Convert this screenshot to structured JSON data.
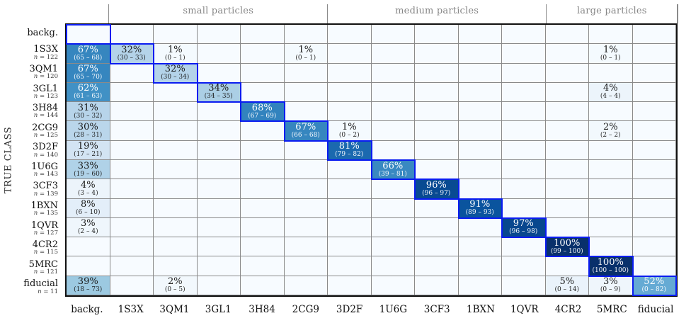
{
  "chart_data": {
    "type": "heatmap",
    "ylabel": "TRUE CLASS",
    "legend_position": "none",
    "grid": true,
    "colors": {
      "empty_cell": "#f7fbff",
      "diagonal_border": "#0a1cf0",
      "grid_line": "#8a8a8a",
      "frame": "#101010",
      "group_header_text": "#878787",
      "colormap": "Blues"
    },
    "group_headers": [
      {
        "label": "small particles",
        "start": 1,
        "span": 5
      },
      {
        "label": "medium particles",
        "start": 6,
        "span": 5
      },
      {
        "label": "large particles",
        "start": 11,
        "span": 3
      }
    ],
    "columns": [
      "backg.",
      "1S3X",
      "3QM1",
      "3GL1",
      "3H84",
      "2CG9",
      "3D2F",
      "1U6G",
      "3CF3",
      "1BXN",
      "1QVR",
      "4CR2",
      "5MRC",
      "fiducial"
    ],
    "rows": [
      {
        "label": "backg.",
        "n": null,
        "n_label": "",
        "cells": []
      },
      {
        "label": "1S3X",
        "n": 122,
        "n_label": "n = 122",
        "cells": [
          {
            "c": 0,
            "pct": "67%",
            "range": "(65 – 68)",
            "value": 67,
            "ci": [
              65,
              68
            ],
            "bg": "#3686bf"
          },
          {
            "c": 1,
            "pct": "32%",
            "range": "(30 – 33)",
            "value": 32,
            "ci": [
              30,
              33
            ],
            "bg": "#b4d3e9"
          },
          {
            "c": 2,
            "pct": "1%",
            "range": "(0 – 1)",
            "value": 1,
            "ci": [
              0,
              1
            ],
            "bg": "#f4fafe"
          },
          {
            "c": 5,
            "pct": "1%",
            "range": "(0 – 1)",
            "value": 1,
            "ci": [
              0,
              1
            ],
            "bg": "#f4fafe"
          },
          {
            "c": 12,
            "pct": "1%",
            "range": "(0 – 1)",
            "value": 1,
            "ci": [
              0,
              1
            ],
            "bg": "#f4fafe"
          }
        ]
      },
      {
        "label": "3QM1",
        "n": 120,
        "n_label": "n = 120",
        "cells": [
          {
            "c": 0,
            "pct": "67%",
            "range": "(65 – 70)",
            "value": 67,
            "ci": [
              65,
              70
            ],
            "bg": "#3686bf"
          },
          {
            "c": 2,
            "pct": "32%",
            "range": "(30 – 34)",
            "value": 32,
            "ci": [
              30,
              34
            ],
            "bg": "#b4d3e9"
          }
        ]
      },
      {
        "label": "3GL1",
        "n": 123,
        "n_label": "n = 123",
        "cells": [
          {
            "c": 0,
            "pct": "62%",
            "range": "(61 – 63)",
            "value": 62,
            "ci": [
              61,
              63
            ],
            "bg": "#4191c5"
          },
          {
            "c": 3,
            "pct": "34%",
            "range": "(34 – 35)",
            "value": 34,
            "ci": [
              34,
              35
            ],
            "bg": "#abcfe5"
          },
          {
            "c": 12,
            "pct": "4%",
            "range": "(4 – 4)",
            "value": 4,
            "ci": [
              4,
              4
            ],
            "bg": "#ecf4fb"
          }
        ]
      },
      {
        "label": "3H84",
        "n": 144,
        "n_label": "n = 144",
        "cells": [
          {
            "c": 0,
            "pct": "31%",
            "range": "(30 – 32)",
            "value": 31,
            "ci": [
              30,
              32
            ],
            "bg": "#b7d4ea"
          },
          {
            "c": 4,
            "pct": "68%",
            "range": "(67 – 69)",
            "value": 68,
            "ci": [
              67,
              69
            ],
            "bg": "#3283be"
          }
        ]
      },
      {
        "label": "2CG9",
        "n": 125,
        "n_label": "n = 125",
        "cells": [
          {
            "c": 0,
            "pct": "30%",
            "range": "(28 – 31)",
            "value": 30,
            "ci": [
              28,
              31
            ],
            "bg": "#bad6eb"
          },
          {
            "c": 5,
            "pct": "67%",
            "range": "(66 – 68)",
            "value": 67,
            "ci": [
              66,
              68
            ],
            "bg": "#3686bf"
          },
          {
            "c": 6,
            "pct": "1%",
            "range": "(0 – 2)",
            "value": 1,
            "ci": [
              0,
              2
            ],
            "bg": "#f4fafe"
          },
          {
            "c": 12,
            "pct": "2%",
            "range": "(2 – 2)",
            "value": 2,
            "ci": [
              2,
              2
            ],
            "bg": "#f2f8fd"
          }
        ]
      },
      {
        "label": "3D2F",
        "n": 140,
        "n_label": "n = 140",
        "cells": [
          {
            "c": 0,
            "pct": "19%",
            "range": "(17 – 21)",
            "value": 19,
            "ci": [
              17,
              21
            ],
            "bg": "#d3e4f3"
          },
          {
            "c": 6,
            "pct": "81%",
            "range": "(79 – 82)",
            "value": 81,
            "ci": [
              79,
              82
            ],
            "bg": "#1b69af"
          }
        ]
      },
      {
        "label": "1U6G",
        "n": 143,
        "n_label": "n = 143",
        "cells": [
          {
            "c": 0,
            "pct": "33%",
            "range": "(19 – 60)",
            "value": 33,
            "ci": [
              19,
              60
            ],
            "bg": "#b0d2e8"
          },
          {
            "c": 7,
            "pct": "66%",
            "range": "(39 – 81)",
            "value": 66,
            "ci": [
              39,
              81
            ],
            "bg": "#3989c1"
          }
        ]
      },
      {
        "label": "3CF3",
        "n": 139,
        "n_label": "n = 139",
        "cells": [
          {
            "c": 0,
            "pct": "4%",
            "range": "(3 – 4)",
            "value": 4,
            "ci": [
              3,
              4
            ],
            "bg": "#ecf4fb"
          },
          {
            "c": 8,
            "pct": "96%",
            "range": "(96 – 97)",
            "value": 96,
            "ci": [
              96,
              97
            ],
            "bg": "#084a92"
          }
        ]
      },
      {
        "label": "1BXN",
        "n": 135,
        "n_label": "n = 135",
        "cells": [
          {
            "c": 0,
            "pct": "8%",
            "range": "(6 – 10)",
            "value": 8,
            "ci": [
              6,
              10
            ],
            "bg": "#e3eef9"
          },
          {
            "c": 9,
            "pct": "91%",
            "range": "(89 – 93)",
            "value": 91,
            "ci": [
              89,
              93
            ],
            "bg": "#0a549e"
          }
        ]
      },
      {
        "label": "1QVR",
        "n": 127,
        "n_label": "n = 127",
        "cells": [
          {
            "c": 0,
            "pct": "3%",
            "range": "(2 – 4)",
            "value": 3,
            "ci": [
              2,
              4
            ],
            "bg": "#eff6fc"
          },
          {
            "c": 10,
            "pct": "97%",
            "range": "(96 – 98)",
            "value": 97,
            "ci": [
              96,
              98
            ],
            "bg": "#08478e"
          }
        ]
      },
      {
        "label": "4CR2",
        "n": 115,
        "n_label": "n = 115",
        "cells": [
          {
            "c": 11,
            "pct": "100%",
            "range": "(99 – 100)",
            "value": 100,
            "ci": [
              99,
              100
            ],
            "bg": "#08306b"
          }
        ]
      },
      {
        "label": "5MRC",
        "n": 121,
        "n_label": "n = 121",
        "cells": [
          {
            "c": 12,
            "pct": "100%",
            "range": "(100 – 100)",
            "value": 100,
            "ci": [
              100,
              100
            ],
            "bg": "#08306b"
          }
        ]
      },
      {
        "label": "fiducial",
        "n": 11,
        "n_label": "n = 11",
        "cells": [
          {
            "c": 0,
            "pct": "39%",
            "range": "(18 – 73)",
            "value": 39,
            "ci": [
              18,
              73
            ],
            "bg": "#9cc9e1"
          },
          {
            "c": 2,
            "pct": "2%",
            "range": "(0 – 5)",
            "value": 2,
            "ci": [
              0,
              5
            ],
            "bg": "#f2f8fd"
          },
          {
            "c": 11,
            "pct": "5%",
            "range": "(0 – 14)",
            "value": 5,
            "ci": [
              0,
              14
            ],
            "bg": "#eaf3fb"
          },
          {
            "c": 12,
            "pct": "3%",
            "range": "(0 – 9)",
            "value": 3,
            "ci": [
              0,
              9
            ],
            "bg": "#eff6fc"
          },
          {
            "c": 13,
            "pct": "52%",
            "range": "(0 – 82)",
            "value": 52,
            "ci": [
              0,
              82
            ],
            "bg": "#65aad4"
          }
        ]
      }
    ]
  }
}
